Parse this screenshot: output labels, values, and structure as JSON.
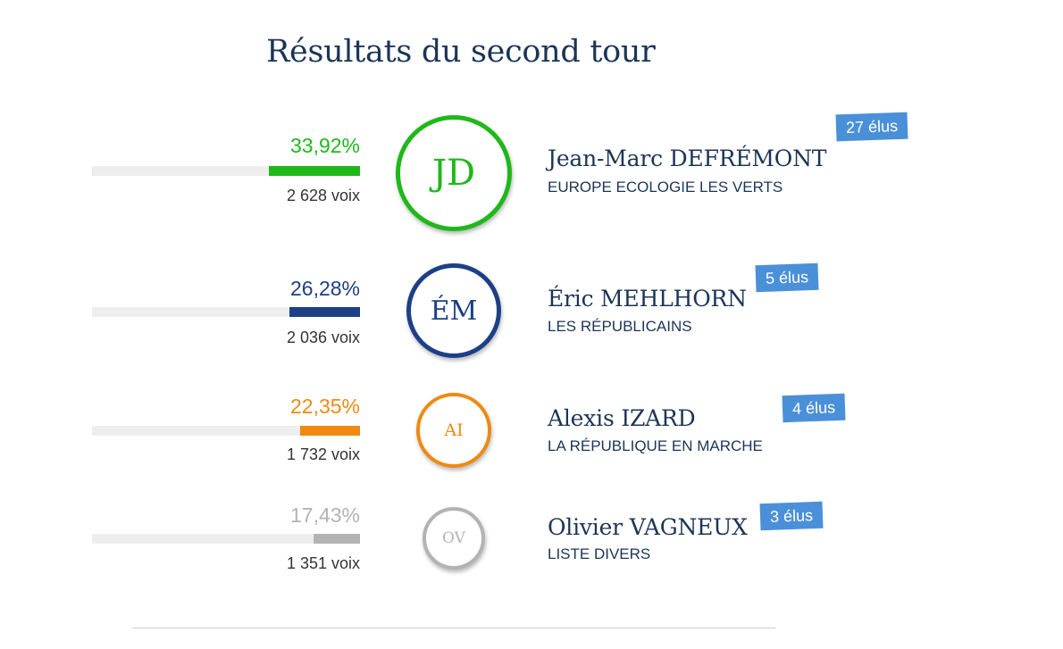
{
  "title": "Résultats du second tour",
  "chart_data": {
    "type": "bar",
    "title": "Résultats du second tour",
    "unit": "%",
    "ylim": [
      0,
      100
    ],
    "candidates": [
      {
        "initials": "JD",
        "name": "Jean-Marc DEFRÉMONT",
        "party": "EUROPE ECOLOGIE LES VERTS",
        "percent": 33.92,
        "percent_label": "33,92%",
        "votes": 2628,
        "votes_label": "2 628 voix",
        "elected_label": "27 élus",
        "color": "#1fb81a"
      },
      {
        "initials": "ÉM",
        "name": "Éric MEHLHORN",
        "party": "LES RÉPUBLICAINS",
        "percent": 26.28,
        "percent_label": "26,28%",
        "votes": 2036,
        "votes_label": "2 036 voix",
        "elected_label": "5 élus",
        "color": "#1d3f86"
      },
      {
        "initials": "AI",
        "name": "Alexis IZARD",
        "party": "LA RÉPUBLIQUE EN MARCHE",
        "percent": 22.35,
        "percent_label": "22,35%",
        "votes": 1732,
        "votes_label": "1 732 voix",
        "elected_label": "4 élus",
        "color": "#ee8a12"
      },
      {
        "initials": "OV",
        "name": "Olivier VAGNEUX",
        "party": "LISTE DIVERS",
        "percent": 17.43,
        "percent_label": "17,43%",
        "votes": 1351,
        "votes_label": "1 351 voix",
        "elected_label": "3 élus",
        "color": "#b3b3b3"
      }
    ]
  },
  "styles": {
    "badge_color": "#4a90d9",
    "track_color": "#eeeeee",
    "text_color": "#1b3557"
  }
}
